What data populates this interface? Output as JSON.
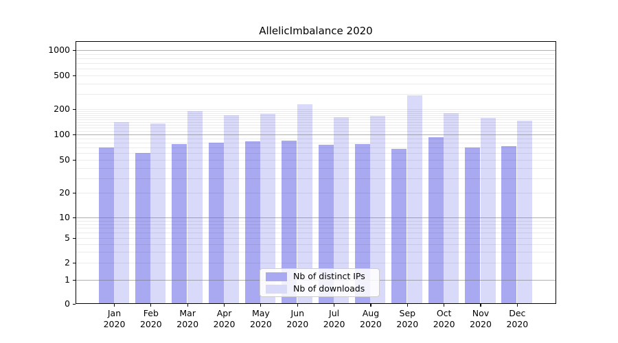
{
  "title": "AllelicImbalance 2020",
  "legend": {
    "items": [
      {
        "label": "Nb of distinct IPs",
        "color": "#a9a9f1"
      },
      {
        "label": "Nb of downloads",
        "color": "#d9d9fa"
      }
    ]
  },
  "chart_data": {
    "type": "bar",
    "title": "AllelicImbalance 2020",
    "categories": [
      "Jan",
      "Feb",
      "Mar",
      "Apr",
      "May",
      "Jun",
      "Jul",
      "Aug",
      "Sep",
      "Oct",
      "Nov",
      "Dec"
    ],
    "year_label": "2020",
    "series": [
      {
        "name": "Nb of distinct IPs",
        "color": "#a9a9f1",
        "values": [
          70,
          60,
          77,
          80,
          83,
          85,
          76,
          77,
          67,
          93,
          70,
          73
        ]
      },
      {
        "name": "Nb of downloads",
        "color": "#d9d9fa",
        "values": [
          140,
          134,
          190,
          168,
          174,
          228,
          160,
          165,
          290,
          178,
          158,
          146
        ]
      }
    ],
    "xlabel": "",
    "ylabel": "",
    "yscale": "symlog",
    "yticks": [
      0,
      1,
      2,
      5,
      10,
      20,
      50,
      100,
      200,
      500,
      1000
    ],
    "ylim": [
      0,
      1400
    ],
    "grid": "on",
    "legend_position": "lower-center-inside"
  }
}
